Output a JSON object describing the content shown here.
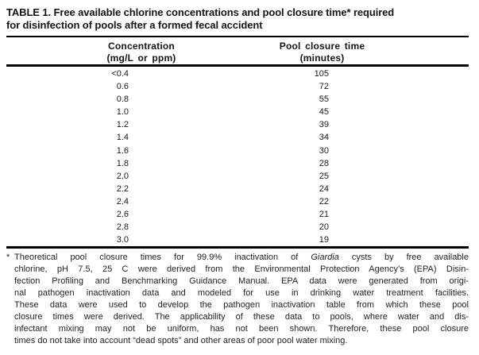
{
  "title": {
    "line1": "TABLE 1. Free available chlorine concentrations and pool closure time* required",
    "line2": "for disinfection of pools after a formed fecal accident"
  },
  "table": {
    "col1_header": {
      "line1": "Concentration",
      "line2": "(mg/L or ppm)"
    },
    "col2_header": {
      "line1": "Pool closure time",
      "line2": "(minutes)"
    },
    "rows": [
      {
        "c": "<0.4",
        "t": "105"
      },
      {
        "c": "0.6",
        "t": "72"
      },
      {
        "c": "0.8",
        "t": "55"
      },
      {
        "c": "1.0",
        "t": "45"
      },
      {
        "c": "1.2",
        "t": "39"
      },
      {
        "c": "1.4",
        "t": "34"
      },
      {
        "c": "1.6",
        "t": "30"
      },
      {
        "c": "1.8",
        "t": "28"
      },
      {
        "c": "2.0",
        "t": "25"
      },
      {
        "c": "2.2",
        "t": "24"
      },
      {
        "c": "2.4",
        "t": "22"
      },
      {
        "c": "2.6",
        "t": "21"
      },
      {
        "c": "2.8",
        "t": "20"
      },
      {
        "c": "3.0",
        "t": "19"
      }
    ]
  },
  "footnote": {
    "marker": "*",
    "line1_pre": "Theoretical pool closure times for 99.9% inactivation of ",
    "line1_italic": "Giardia",
    "line1_post": " cysts by free available",
    "line2": "chlorine, pH 7.5, 25 C were derived from the Environmental Protection Agency’s (EPA) Disin-",
    "line3": "fection Profiling and Benchmarking Guidance Manual. EPA data were generated from origi-",
    "line4": "nal pathogen inactivation data and modeled for use in drinking water treatment facilities.",
    "line5": "These data were used to develop the pathogen inactivation table from which these pool",
    "line6": "closure times were derived. The applicability of these data to pools, where water and dis-",
    "line7": "infectant mixing may not be uniform, has not been shown. Therefore, these pool closure",
    "line8": "times do not take into account “dead spots” and other areas of poor pool water mixing."
  },
  "colors": {
    "ink": "#1a1a1a",
    "rule": "#000000",
    "background": "#ffffff"
  }
}
